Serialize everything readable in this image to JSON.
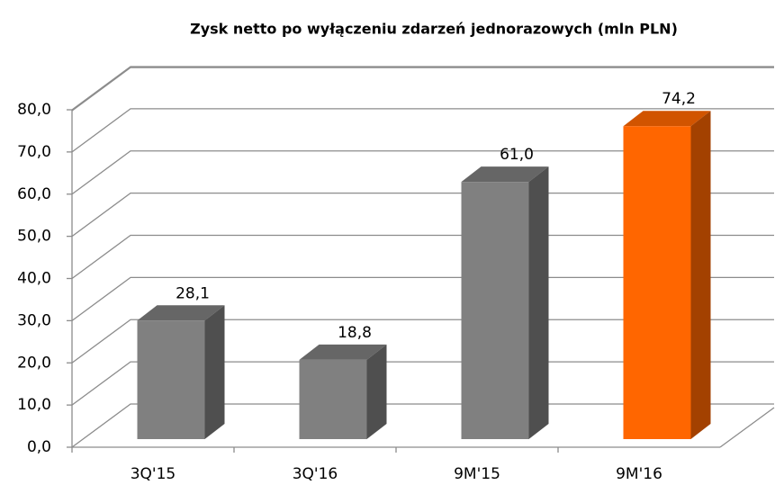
{
  "chart_data": {
    "type": "bar3d",
    "title": "Zysk netto po wyłączeniu zdarzeń jednorazowych (mln PLN)",
    "categories": [
      "3Q'15",
      "3Q'16",
      "9M'15",
      "9M'16"
    ],
    "values": [
      28.1,
      18.8,
      61.0,
      74.2
    ],
    "value_labels": [
      "28,1",
      "18,8",
      "61,0",
      "74,2"
    ],
    "colors": [
      "#808080",
      "#808080",
      "#808080",
      "#ff6600"
    ],
    "ylim": [
      0,
      90
    ],
    "yticks": [
      {
        "value": 0,
        "label": "0,0"
      },
      {
        "value": 10,
        "label": "10,0"
      },
      {
        "value": 20,
        "label": "20,0"
      },
      {
        "value": 30,
        "label": "30,0"
      },
      {
        "value": 40,
        "label": "40,0"
      },
      {
        "value": 50,
        "label": "50,0"
      },
      {
        "value": 60,
        "label": "60,0"
      },
      {
        "value": 70,
        "label": "70,0"
      },
      {
        "value": 80,
        "label": "80,0"
      }
    ],
    "grid": true
  }
}
